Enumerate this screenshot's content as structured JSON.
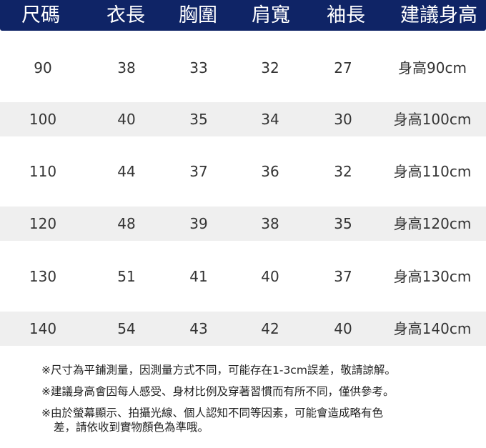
{
  "header": [
    "尺碼",
    "衣長",
    "胸圍",
    "肩寬",
    "袖長",
    "建議身高"
  ],
  "rows": [
    [
      "90",
      "38",
      "33",
      "32",
      "27",
      "身高90cm"
    ],
    [
      "100",
      "40",
      "35",
      "34",
      "30",
      "身高100cm"
    ],
    [
      "110",
      "44",
      "37",
      "36",
      "32",
      "身高110cm"
    ],
    [
      "120",
      "48",
      "39",
      "38",
      "35",
      "身高120cm"
    ],
    [
      "130",
      "51",
      "41",
      "40",
      "37",
      "身高130cm"
    ],
    [
      "140",
      "54",
      "43",
      "42",
      "40",
      "身高140cm"
    ]
  ],
  "notes": {
    "n1": "※尺寸為平鋪測量，因測量方式不同，可能存在1-3cm誤差，敬請諒解。",
    "n2": "※建議身高會因每人感受、身材比例及穿著習慣而有所不同，僅供參考。",
    "n3a": "※由於螢幕顯示、拍攝光線、個人認知不同等因素，可能會造成略有色",
    "n3b": "差，請依收到實物顏色為準哦。"
  },
  "colors": {
    "header_bg": "#0f2466",
    "alt_row_bg": "#efefef"
  }
}
